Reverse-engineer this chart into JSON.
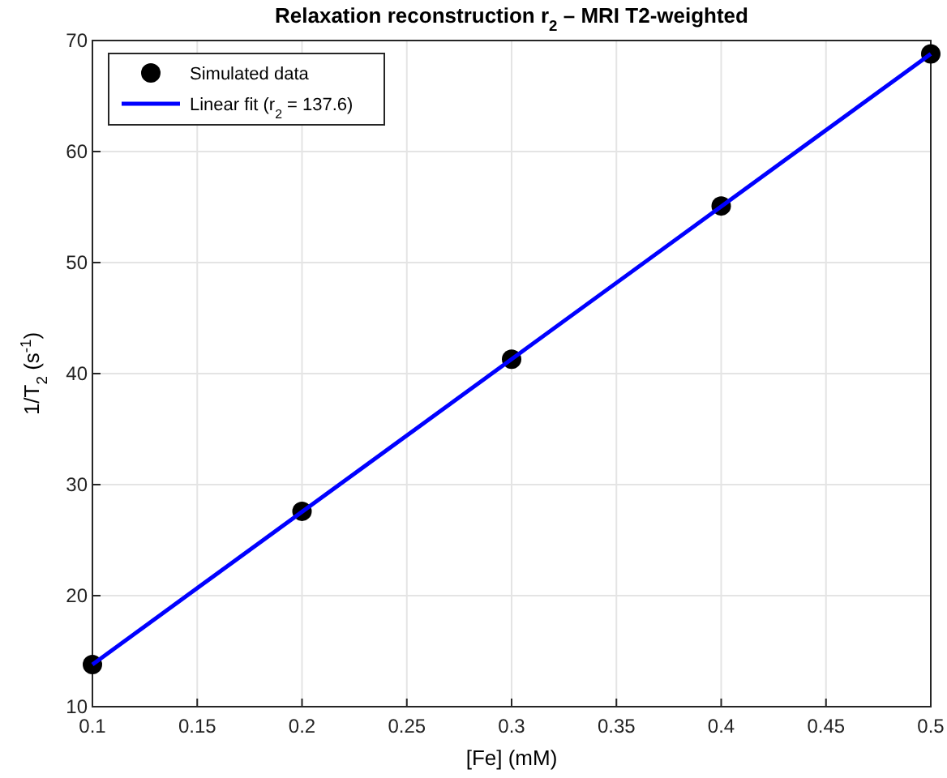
{
  "chart_data": {
    "type": "scatter",
    "title": "Relaxation reconstruction r$_{2}$ – MRI T2-weighted",
    "xlabel": "[Fe] (mM)",
    "ylabel": "1/T$_{2}$ (s$^{-1}$)",
    "x": [
      0.1,
      0.2,
      0.3,
      0.4,
      0.5
    ],
    "series": [
      {
        "name": "Simulated data",
        "color": "#000000",
        "marker": "circle",
        "values": [
          13.8,
          27.6,
          41.3,
          55.1,
          68.8
        ]
      },
      {
        "name": "Linear fit (r$_{2}$ = 137.6)",
        "type": "line",
        "color": "#0000ff",
        "marker": "none",
        "line_style": "solid",
        "x": [
          0.1,
          0.5
        ],
        "values": [
          13.8,
          68.8
        ]
      }
    ],
    "xlim": [
      0.1,
      0.5
    ],
    "xticks": [
      0.1,
      0.15,
      0.2,
      0.25,
      0.3,
      0.35,
      0.4,
      0.45,
      0.5
    ],
    "ylim": [
      10,
      70
    ],
    "yticks": [
      10,
      20,
      30,
      40,
      50,
      60,
      70
    ],
    "grid": true,
    "legend": "top left"
  }
}
